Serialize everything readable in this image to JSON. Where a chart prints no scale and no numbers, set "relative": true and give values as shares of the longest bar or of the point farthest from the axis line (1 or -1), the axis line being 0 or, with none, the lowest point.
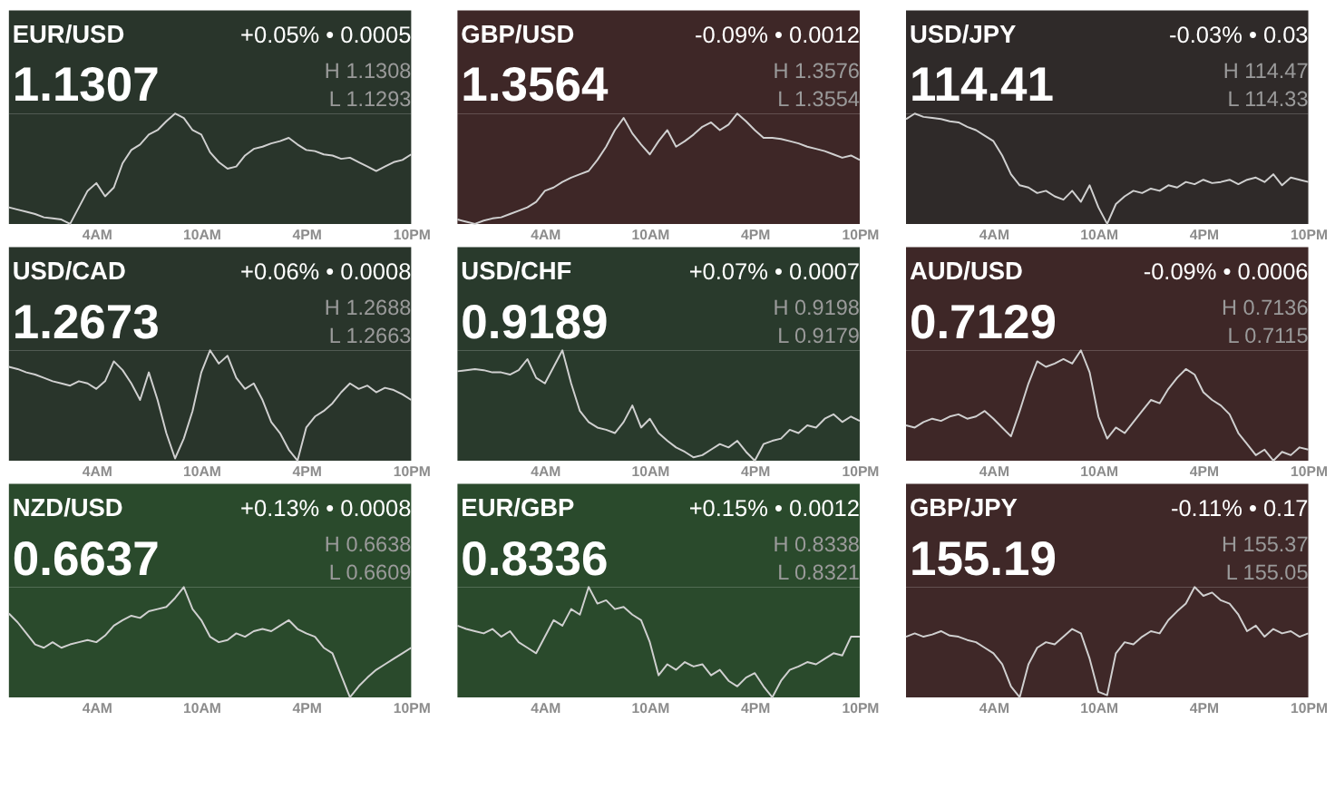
{
  "chart_data": [
    {
      "type": "line",
      "title": "EUR/USD",
      "annotations": [
        "1.1307",
        "+0.05% • 0.0005",
        "H 1.1308",
        "L 1.1293"
      ],
      "relative": true,
      "tick_labels": "x",
      "categories": [
        null,
        null,
        null,
        null,
        null,
        null,
        null,
        null,
        null,
        null,
        "4AM",
        null,
        null,
        null,
        null,
        null,
        null,
        null,
        null,
        null,
        null,
        null,
        "10AM",
        null,
        null,
        null,
        null,
        null,
        null,
        null,
        null,
        null,
        null,
        null,
        "4PM",
        null,
        null,
        null,
        null,
        null,
        null,
        null,
        null,
        null,
        null,
        null,
        "10PM"
      ],
      "series": [
        {
          "color": "#d0d0d0",
          "values": [
            0.15,
            0.13,
            0.11,
            0.09,
            0.06,
            0.05,
            0.04,
            0.0,
            0.15,
            0.3,
            0.37,
            0.25,
            0.33,
            0.55,
            0.67,
            0.72,
            0.81,
            0.85,
            0.93,
            1.0,
            0.96,
            0.85,
            0.81,
            0.65,
            0.56,
            0.5,
            0.52,
            0.62,
            0.68,
            0.7,
            0.73,
            0.75,
            0.78,
            0.72,
            0.67,
            0.66,
            0.63,
            0.62,
            0.59,
            0.6,
            0.56,
            0.52,
            0.48,
            0.52,
            0.56,
            0.58,
            0.63
          ]
        }
      ]
    },
    {
      "type": "line",
      "title": "GBP/USD",
      "annotations": [
        "1.3564",
        "-0.09% • 0.0012",
        "H 1.3576",
        "L 1.3554"
      ],
      "relative": true,
      "tick_labels": "x",
      "categories": [
        null,
        null,
        null,
        null,
        null,
        null,
        null,
        null,
        null,
        null,
        "4AM",
        null,
        null,
        null,
        null,
        null,
        null,
        null,
        null,
        null,
        null,
        null,
        "10AM",
        null,
        null,
        null,
        null,
        null,
        null,
        null,
        null,
        null,
        null,
        null,
        "4PM",
        null,
        null,
        null,
        null,
        null,
        null,
        null,
        null,
        null,
        null,
        null,
        "10PM"
      ],
      "series": [
        {
          "color": "#d0d0d0",
          "values": [
            0.04,
            0.02,
            0.0,
            0.03,
            0.05,
            0.06,
            0.09,
            0.12,
            0.15,
            0.2,
            0.3,
            0.33,
            0.38,
            0.42,
            0.45,
            0.48,
            0.58,
            0.7,
            0.85,
            0.96,
            0.82,
            0.72,
            0.63,
            0.75,
            0.85,
            0.7,
            0.75,
            0.81,
            0.88,
            0.92,
            0.85,
            0.9,
            1.0,
            0.93,
            0.85,
            0.78,
            0.78,
            0.77,
            0.75,
            0.73,
            0.7,
            0.68,
            0.66,
            0.63,
            0.6,
            0.62,
            0.58
          ]
        }
      ]
    },
    {
      "type": "line",
      "title": "USD/JPY",
      "annotations": [
        "114.41",
        "-0.03% • 0.03",
        "H 114.47",
        "L 114.33"
      ],
      "relative": true,
      "tick_labels": "x",
      "categories": [
        null,
        null,
        null,
        null,
        null,
        null,
        null,
        null,
        null,
        null,
        "4AM",
        null,
        null,
        null,
        null,
        null,
        null,
        null,
        null,
        null,
        null,
        null,
        "10AM",
        null,
        null,
        null,
        null,
        null,
        null,
        null,
        null,
        null,
        null,
        null,
        "4PM",
        null,
        null,
        null,
        null,
        null,
        null,
        null,
        null,
        null,
        null,
        null,
        "10PM"
      ],
      "series": [
        {
          "color": "#d0d0d0",
          "values": [
            0.95,
            1.0,
            0.97,
            0.96,
            0.95,
            0.93,
            0.92,
            0.88,
            0.85,
            0.8,
            0.75,
            0.62,
            0.45,
            0.35,
            0.33,
            0.28,
            0.3,
            0.25,
            0.22,
            0.3,
            0.2,
            0.35,
            0.15,
            0.0,
            0.18,
            0.25,
            0.3,
            0.28,
            0.32,
            0.3,
            0.35,
            0.33,
            0.38,
            0.36,
            0.4,
            0.37,
            0.38,
            0.4,
            0.36,
            0.4,
            0.42,
            0.38,
            0.45,
            0.35,
            0.42,
            0.4,
            0.38
          ]
        }
      ]
    },
    {
      "type": "line",
      "title": "USD/CAD",
      "annotations": [
        "1.2673",
        "+0.06% • 0.0008",
        "H 1.2688",
        "L 1.2663"
      ],
      "relative": true,
      "tick_labels": "x",
      "categories": [
        null,
        null,
        null,
        null,
        null,
        null,
        null,
        null,
        null,
        null,
        "4AM",
        null,
        null,
        null,
        null,
        null,
        null,
        null,
        null,
        null,
        null,
        null,
        "10AM",
        null,
        null,
        null,
        null,
        null,
        null,
        null,
        null,
        null,
        null,
        null,
        "4PM",
        null,
        null,
        null,
        null,
        null,
        null,
        null,
        null,
        null,
        null,
        null,
        "10PM"
      ],
      "series": [
        {
          "color": "#d0d0d0",
          "values": [
            0.85,
            0.83,
            0.8,
            0.78,
            0.75,
            0.72,
            0.7,
            0.68,
            0.72,
            0.7,
            0.65,
            0.72,
            0.9,
            0.82,
            0.7,
            0.55,
            0.8,
            0.55,
            0.25,
            0.02,
            0.2,
            0.45,
            0.8,
            1.0,
            0.88,
            0.95,
            0.75,
            0.65,
            0.7,
            0.55,
            0.35,
            0.25,
            0.1,
            0.0,
            0.3,
            0.4,
            0.45,
            0.52,
            0.62,
            0.7,
            0.65,
            0.68,
            0.62,
            0.66,
            0.64,
            0.6,
            0.55
          ]
        }
      ]
    },
    {
      "type": "line",
      "title": "USD/CHF",
      "annotations": [
        "0.9189",
        "+0.07% • 0.0007",
        "H 0.9198",
        "L 0.9179"
      ],
      "relative": true,
      "tick_labels": "x",
      "categories": [
        null,
        null,
        null,
        null,
        null,
        null,
        null,
        null,
        null,
        null,
        "4AM",
        null,
        null,
        null,
        null,
        null,
        null,
        null,
        null,
        null,
        null,
        null,
        "10AM",
        null,
        null,
        null,
        null,
        null,
        null,
        null,
        null,
        null,
        null,
        null,
        "4PM",
        null,
        null,
        null,
        null,
        null,
        null,
        null,
        null,
        null,
        null,
        null,
        "10PM"
      ],
      "series": [
        {
          "color": "#d0d0d0",
          "values": [
            0.81,
            0.82,
            0.83,
            0.82,
            0.8,
            0.8,
            0.78,
            0.82,
            0.92,
            0.75,
            0.7,
            0.85,
            1.0,
            0.7,
            0.45,
            0.35,
            0.3,
            0.28,
            0.25,
            0.35,
            0.5,
            0.3,
            0.38,
            0.25,
            0.18,
            0.12,
            0.08,
            0.03,
            0.05,
            0.1,
            0.15,
            0.12,
            0.18,
            0.08,
            0.0,
            0.15,
            0.18,
            0.2,
            0.28,
            0.25,
            0.32,
            0.3,
            0.38,
            0.42,
            0.35,
            0.4,
            0.36
          ]
        }
      ]
    },
    {
      "type": "line",
      "title": "AUD/USD",
      "annotations": [
        "0.7129",
        "-0.09% • 0.0006",
        "H 0.7136",
        "L 0.7115"
      ],
      "relative": true,
      "tick_labels": "x",
      "categories": [
        null,
        null,
        null,
        null,
        null,
        null,
        null,
        null,
        null,
        null,
        "4AM",
        null,
        null,
        null,
        null,
        null,
        null,
        null,
        null,
        null,
        null,
        null,
        "10AM",
        null,
        null,
        null,
        null,
        null,
        null,
        null,
        null,
        null,
        null,
        null,
        "4PM",
        null,
        null,
        null,
        null,
        null,
        null,
        null,
        null,
        null,
        null,
        null,
        "10PM"
      ],
      "series": [
        {
          "color": "#d0d0d0",
          "values": [
            0.32,
            0.3,
            0.35,
            0.38,
            0.36,
            0.4,
            0.42,
            0.38,
            0.4,
            0.45,
            0.38,
            0.3,
            0.22,
            0.45,
            0.7,
            0.9,
            0.85,
            0.88,
            0.92,
            0.88,
            1.0,
            0.8,
            0.4,
            0.2,
            0.3,
            0.25,
            0.35,
            0.45,
            0.55,
            0.52,
            0.65,
            0.75,
            0.83,
            0.78,
            0.62,
            0.55,
            0.5,
            0.42,
            0.25,
            0.15,
            0.05,
            0.1,
            0.0,
            0.08,
            0.05,
            0.12,
            0.1
          ]
        }
      ]
    },
    {
      "type": "line",
      "title": "NZD/USD",
      "annotations": [
        "0.6637",
        "+0.13% • 0.0008",
        "H 0.6638",
        "L 0.6609"
      ],
      "relative": true,
      "tick_labels": "x",
      "categories": [
        null,
        null,
        null,
        null,
        null,
        null,
        null,
        null,
        null,
        null,
        "4AM",
        null,
        null,
        null,
        null,
        null,
        null,
        null,
        null,
        null,
        null,
        null,
        "10AM",
        null,
        null,
        null,
        null,
        null,
        null,
        null,
        null,
        null,
        null,
        null,
        "4PM",
        null,
        null,
        null,
        null,
        null,
        null,
        null,
        null,
        null,
        null,
        null,
        "10PM"
      ],
      "series": [
        {
          "color": "#d0d0d0",
          "values": [
            0.76,
            0.68,
            0.58,
            0.48,
            0.45,
            0.5,
            0.45,
            0.48,
            0.5,
            0.52,
            0.5,
            0.56,
            0.65,
            0.7,
            0.74,
            0.72,
            0.78,
            0.8,
            0.82,
            0.9,
            1.0,
            0.8,
            0.7,
            0.55,
            0.5,
            0.52,
            0.58,
            0.55,
            0.6,
            0.62,
            0.6,
            0.65,
            0.7,
            0.62,
            0.58,
            0.55,
            0.45,
            0.4,
            0.2,
            0.0,
            0.1,
            0.18,
            0.25,
            0.3,
            0.35,
            0.4,
            0.45
          ]
        }
      ]
    },
    {
      "type": "line",
      "title": "EUR/GBP",
      "annotations": [
        "0.8336",
        "+0.15% • 0.0012",
        "H 0.8338",
        "L 0.8321"
      ],
      "relative": true,
      "tick_labels": "x",
      "categories": [
        null,
        null,
        null,
        null,
        null,
        null,
        null,
        null,
        null,
        null,
        "4AM",
        null,
        null,
        null,
        null,
        null,
        null,
        null,
        null,
        null,
        null,
        null,
        "10AM",
        null,
        null,
        null,
        null,
        null,
        null,
        null,
        null,
        null,
        null,
        null,
        "4PM",
        null,
        null,
        null,
        null,
        null,
        null,
        null,
        null,
        null,
        null,
        null,
        "10PM"
      ],
      "series": [
        {
          "color": "#d0d0d0",
          "values": [
            0.65,
            0.62,
            0.6,
            0.58,
            0.62,
            0.55,
            0.6,
            0.5,
            0.45,
            0.4,
            0.55,
            0.7,
            0.65,
            0.8,
            0.75,
            1.0,
            0.85,
            0.88,
            0.8,
            0.82,
            0.75,
            0.7,
            0.5,
            0.2,
            0.3,
            0.25,
            0.32,
            0.28,
            0.3,
            0.2,
            0.25,
            0.15,
            0.1,
            0.18,
            0.22,
            0.1,
            0.0,
            0.15,
            0.25,
            0.28,
            0.32,
            0.3,
            0.35,
            0.4,
            0.38,
            0.55,
            0.55
          ]
        }
      ]
    },
    {
      "type": "line",
      "title": "GBP/JPY",
      "annotations": [
        "155.19",
        "-0.11% • 0.17",
        "H 155.37",
        "L 155.05"
      ],
      "relative": true,
      "tick_labels": "x",
      "categories": [
        null,
        null,
        null,
        null,
        null,
        null,
        null,
        null,
        null,
        null,
        "4AM",
        null,
        null,
        null,
        null,
        null,
        null,
        null,
        null,
        null,
        null,
        null,
        "10AM",
        null,
        null,
        null,
        null,
        null,
        null,
        null,
        null,
        null,
        null,
        null,
        "4PM",
        null,
        null,
        null,
        null,
        null,
        null,
        null,
        null,
        null,
        null,
        null,
        "10PM"
      ],
      "series": [
        {
          "color": "#d0d0d0",
          "values": [
            0.55,
            0.58,
            0.55,
            0.57,
            0.6,
            0.56,
            0.55,
            0.52,
            0.5,
            0.45,
            0.4,
            0.3,
            0.1,
            0.0,
            0.3,
            0.45,
            0.5,
            0.48,
            0.55,
            0.62,
            0.58,
            0.35,
            0.05,
            0.02,
            0.4,
            0.5,
            0.48,
            0.55,
            0.6,
            0.58,
            0.7,
            0.78,
            0.85,
            1.0,
            0.92,
            0.95,
            0.88,
            0.85,
            0.75,
            0.6,
            0.65,
            0.55,
            0.62,
            0.58,
            0.6,
            0.55,
            0.58
          ]
        }
      ]
    }
  ]
}
